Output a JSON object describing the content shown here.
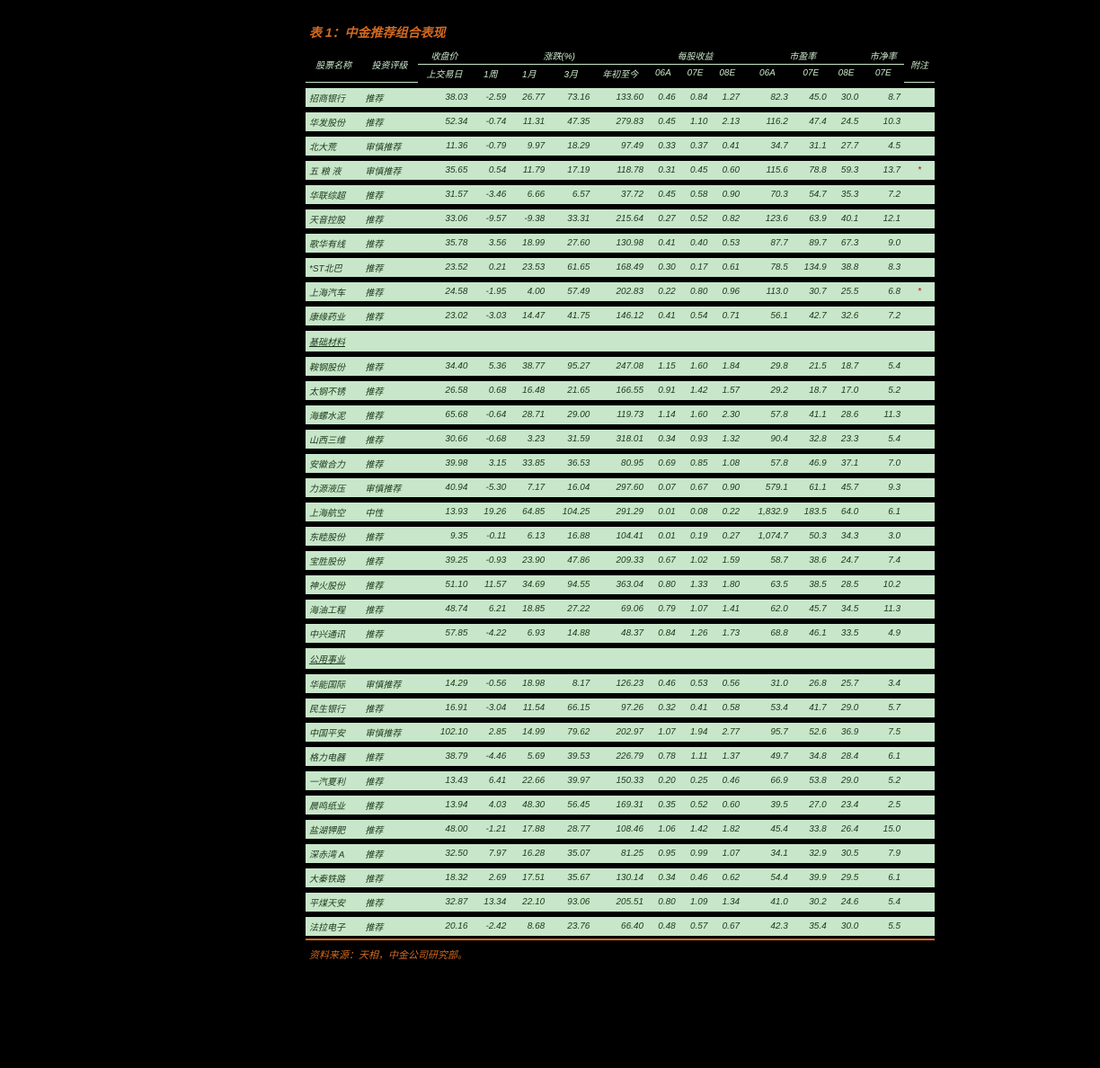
{
  "title": "表 1：中金推荐组合表现",
  "footer": "资料来源：天相，中金公司研究部。",
  "colors": {
    "background_page": "#000000",
    "row_bg": "#c8e6c9",
    "header_text": "#c8e6c9",
    "title_color": "#d4691e",
    "cell_text": "#1a3a1a",
    "note_color": "#c00"
  },
  "header_groups": {
    "name": "股票名称",
    "rating": "投资评级",
    "price_group": "收盘价",
    "price_sub": "上交易日",
    "chg_group": "涨跌(%)",
    "chg_1w": "1周",
    "chg_1m": "1月",
    "chg_3m": "3月",
    "chg_ytd": "年初至今",
    "eps_group": "每股收益",
    "eps_06a": "06A",
    "eps_07e": "07E",
    "eps_08e": "08E",
    "pe_group": "市盈率",
    "pe_06a": "06A",
    "pe_07e": "07E",
    "pe_08e": "08E",
    "pb_group": "市净率",
    "pb_07e": "07E",
    "note": "附注"
  },
  "sections": [
    {
      "rows": [
        {
          "name": "招商银行",
          "rating": "推荐",
          "price": "38.03",
          "w1": "-2.59",
          "m1": "26.77",
          "m3": "73.16",
          "ytd": "133.60",
          "e06": "0.46",
          "e07": "0.84",
          "e08": "1.27",
          "p06": "82.3",
          "p07": "45.0",
          "p08": "30.0",
          "pb": "8.7",
          "note": ""
        },
        {
          "name": "华发股份",
          "rating": "推荐",
          "price": "52.34",
          "w1": "-0.74",
          "m1": "11.31",
          "m3": "47.35",
          "ytd": "279.83",
          "e06": "0.45",
          "e07": "1.10",
          "e08": "2.13",
          "p06": "116.2",
          "p07": "47.4",
          "p08": "24.5",
          "pb": "10.3",
          "note": ""
        },
        {
          "name": "北大荒",
          "rating": "审慎推荐",
          "price": "11.36",
          "w1": "-0.79",
          "m1": "9.97",
          "m3": "18.29",
          "ytd": "97.49",
          "e06": "0.33",
          "e07": "0.37",
          "e08": "0.41",
          "p06": "34.7",
          "p07": "31.1",
          "p08": "27.7",
          "pb": "4.5",
          "note": ""
        },
        {
          "name": "五 粮 液",
          "rating": "审慎推荐",
          "price": "35.65",
          "w1": "0.54",
          "m1": "11.79",
          "m3": "17.19",
          "ytd": "118.78",
          "e06": "0.31",
          "e07": "0.45",
          "e08": "0.60",
          "p06": "115.6",
          "p07": "78.8",
          "p08": "59.3",
          "pb": "13.7",
          "note": "*"
        },
        {
          "name": "华联综超",
          "rating": "推荐",
          "price": "31.57",
          "w1": "-3.46",
          "m1": "6.66",
          "m3": "6.57",
          "ytd": "37.72",
          "e06": "0.45",
          "e07": "0.58",
          "e08": "0.90",
          "p06": "70.3",
          "p07": "54.7",
          "p08": "35.3",
          "pb": "7.2",
          "note": ""
        },
        {
          "name": "天音控股",
          "rating": "推荐",
          "price": "33.06",
          "w1": "-9.57",
          "m1": "-9.38",
          "m3": "33.31",
          "ytd": "215.64",
          "e06": "0.27",
          "e07": "0.52",
          "e08": "0.82",
          "p06": "123.6",
          "p07": "63.9",
          "p08": "40.1",
          "pb": "12.1",
          "note": ""
        },
        {
          "name": "歌华有线",
          "rating": "推荐",
          "price": "35.78",
          "w1": "3.56",
          "m1": "18.99",
          "m3": "27.60",
          "ytd": "130.98",
          "e06": "0.41",
          "e07": "0.40",
          "e08": "0.53",
          "p06": "87.7",
          "p07": "89.7",
          "p08": "67.3",
          "pb": "9.0",
          "note": ""
        },
        {
          "name": "*ST北巴",
          "rating": "推荐",
          "price": "23.52",
          "w1": "0.21",
          "m1": "23.53",
          "m3": "61.65",
          "ytd": "168.49",
          "e06": "0.30",
          "e07": "0.17",
          "e08": "0.61",
          "p06": "78.5",
          "p07": "134.9",
          "p08": "38.8",
          "pb": "8.3",
          "note": ""
        },
        {
          "name": "上海汽车",
          "rating": "推荐",
          "price": "24.58",
          "w1": "-1.95",
          "m1": "4.00",
          "m3": "57.49",
          "ytd": "202.83",
          "e06": "0.22",
          "e07": "0.80",
          "e08": "0.96",
          "p06": "113.0",
          "p07": "30.7",
          "p08": "25.5",
          "pb": "6.8",
          "note": "*"
        },
        {
          "name": "康缘药业",
          "rating": "推荐",
          "price": "23.02",
          "w1": "-3.03",
          "m1": "14.47",
          "m3": "41.75",
          "ytd": "146.12",
          "e06": "0.41",
          "e07": "0.54",
          "e08": "0.71",
          "p06": "56.1",
          "p07": "42.7",
          "p08": "32.6",
          "pb": "7.2",
          "note": ""
        }
      ]
    },
    {
      "label": "基础材料",
      "rows": [
        {
          "name": "鞍钢股份",
          "rating": "推荐",
          "price": "34.40",
          "w1": "5.36",
          "m1": "38.77",
          "m3": "95.27",
          "ytd": "247.08",
          "e06": "1.15",
          "e07": "1.60",
          "e08": "1.84",
          "p06": "29.8",
          "p07": "21.5",
          "p08": "18.7",
          "pb": "5.4",
          "note": ""
        },
        {
          "name": "太钢不锈",
          "rating": "推荐",
          "price": "26.58",
          "w1": "0.68",
          "m1": "16.48",
          "m3": "21.65",
          "ytd": "166.55",
          "e06": "0.91",
          "e07": "1.42",
          "e08": "1.57",
          "p06": "29.2",
          "p07": "18.7",
          "p08": "17.0",
          "pb": "5.2",
          "note": ""
        },
        {
          "name": "海螺水泥",
          "rating": "推荐",
          "price": "65.68",
          "w1": "-0.64",
          "m1": "28.71",
          "m3": "29.00",
          "ytd": "119.73",
          "e06": "1.14",
          "e07": "1.60",
          "e08": "2.30",
          "p06": "57.8",
          "p07": "41.1",
          "p08": "28.6",
          "pb": "11.3",
          "note": ""
        },
        {
          "name": "山西三维",
          "rating": "推荐",
          "price": "30.66",
          "w1": "-0.68",
          "m1": "3.23",
          "m3": "31.59",
          "ytd": "318.01",
          "e06": "0.34",
          "e07": "0.93",
          "e08": "1.32",
          "p06": "90.4",
          "p07": "32.8",
          "p08": "23.3",
          "pb": "5.4",
          "note": ""
        },
        {
          "name": "安徽合力",
          "rating": "推荐",
          "price": "39.98",
          "w1": "3.15",
          "m1": "33.85",
          "m3": "36.53",
          "ytd": "80.95",
          "e06": "0.69",
          "e07": "0.85",
          "e08": "1.08",
          "p06": "57.8",
          "p07": "46.9",
          "p08": "37.1",
          "pb": "7.0",
          "note": ""
        },
        {
          "name": "力源液压",
          "rating": "审慎推荐",
          "price": "40.94",
          "w1": "-5.30",
          "m1": "7.17",
          "m3": "16.04",
          "ytd": "297.60",
          "e06": "0.07",
          "e07": "0.67",
          "e08": "0.90",
          "p06": "579.1",
          "p07": "61.1",
          "p08": "45.7",
          "pb": "9.3",
          "note": ""
        },
        {
          "name": "上海航空",
          "rating": "中性",
          "price": "13.93",
          "w1": "19.26",
          "m1": "64.85",
          "m3": "104.25",
          "ytd": "291.29",
          "e06": "0.01",
          "e07": "0.08",
          "e08": "0.22",
          "p06": "1,832.9",
          "p07": "183.5",
          "p08": "64.0",
          "pb": "6.1",
          "note": ""
        },
        {
          "name": "东睦股份",
          "rating": "推荐",
          "price": "9.35",
          "w1": "-0.11",
          "m1": "6.13",
          "m3": "16.88",
          "ytd": "104.41",
          "e06": "0.01",
          "e07": "0.19",
          "e08": "0.27",
          "p06": "1,074.7",
          "p07": "50.3",
          "p08": "34.3",
          "pb": "3.0",
          "note": ""
        },
        {
          "name": "宝胜股份",
          "rating": "推荐",
          "price": "39.25",
          "w1": "-0.93",
          "m1": "23.90",
          "m3": "47.86",
          "ytd": "209.33",
          "e06": "0.67",
          "e07": "1.02",
          "e08": "1.59",
          "p06": "58.7",
          "p07": "38.6",
          "p08": "24.7",
          "pb": "7.4",
          "note": ""
        },
        {
          "name": "神火股份",
          "rating": "推荐",
          "price": "51.10",
          "w1": "11.57",
          "m1": "34.69",
          "m3": "94.55",
          "ytd": "363.04",
          "e06": "0.80",
          "e07": "1.33",
          "e08": "1.80",
          "p06": "63.5",
          "p07": "38.5",
          "p08": "28.5",
          "pb": "10.2",
          "note": ""
        },
        {
          "name": "海油工程",
          "rating": "推荐",
          "price": "48.74",
          "w1": "6.21",
          "m1": "18.85",
          "m3": "27.22",
          "ytd": "69.06",
          "e06": "0.79",
          "e07": "1.07",
          "e08": "1.41",
          "p06": "62.0",
          "p07": "45.7",
          "p08": "34.5",
          "pb": "11.3",
          "note": ""
        },
        {
          "name": "中兴通讯",
          "rating": "推荐",
          "price": "57.85",
          "w1": "-4.22",
          "m1": "6.93",
          "m3": "14.88",
          "ytd": "48.37",
          "e06": "0.84",
          "e07": "1.26",
          "e08": "1.73",
          "p06": "68.8",
          "p07": "46.1",
          "p08": "33.5",
          "pb": "4.9",
          "note": ""
        }
      ]
    },
    {
      "label": "公用事业",
      "rows": [
        {
          "name": "华能国际",
          "rating": "审慎推荐",
          "price": "14.29",
          "w1": "-0.56",
          "m1": "18.98",
          "m3": "8.17",
          "ytd": "126.23",
          "e06": "0.46",
          "e07": "0.53",
          "e08": "0.56",
          "p06": "31.0",
          "p07": "26.8",
          "p08": "25.7",
          "pb": "3.4",
          "note": ""
        },
        {
          "name": "民生银行",
          "rating": "推荐",
          "price": "16.91",
          "w1": "-3.04",
          "m1": "11.54",
          "m3": "66.15",
          "ytd": "97.26",
          "e06": "0.32",
          "e07": "0.41",
          "e08": "0.58",
          "p06": "53.4",
          "p07": "41.7",
          "p08": "29.0",
          "pb": "5.7",
          "note": ""
        },
        {
          "name": "中国平安",
          "rating": "审慎推荐",
          "price": "102.10",
          "w1": "2.85",
          "m1": "14.99",
          "m3": "79.62",
          "ytd": "202.97",
          "e06": "1.07",
          "e07": "1.94",
          "e08": "2.77",
          "p06": "95.7",
          "p07": "52.6",
          "p08": "36.9",
          "pb": "7.5",
          "note": ""
        },
        {
          "name": "格力电器",
          "rating": "推荐",
          "price": "38.79",
          "w1": "-4.46",
          "m1": "5.69",
          "m3": "39.53",
          "ytd": "226.79",
          "e06": "0.78",
          "e07": "1.11",
          "e08": "1.37",
          "p06": "49.7",
          "p07": "34.8",
          "p08": "28.4",
          "pb": "6.1",
          "note": ""
        },
        {
          "name": "一汽夏利",
          "rating": "推荐",
          "price": "13.43",
          "w1": "6.41",
          "m1": "22.66",
          "m3": "39.97",
          "ytd": "150.33",
          "e06": "0.20",
          "e07": "0.25",
          "e08": "0.46",
          "p06": "66.9",
          "p07": "53.8",
          "p08": "29.0",
          "pb": "5.2",
          "note": ""
        },
        {
          "name": "晨鸣纸业",
          "rating": "推荐",
          "price": "13.94",
          "w1": "4.03",
          "m1": "48.30",
          "m3": "56.45",
          "ytd": "169.31",
          "e06": "0.35",
          "e07": "0.52",
          "e08": "0.60",
          "p06": "39.5",
          "p07": "27.0",
          "p08": "23.4",
          "pb": "2.5",
          "note": ""
        },
        {
          "name": "盐湖钾肥",
          "rating": "推荐",
          "price": "48.00",
          "w1": "-1.21",
          "m1": "17.88",
          "m3": "28.77",
          "ytd": "108.46",
          "e06": "1.06",
          "e07": "1.42",
          "e08": "1.82",
          "p06": "45.4",
          "p07": "33.8",
          "p08": "26.4",
          "pb": "15.0",
          "note": ""
        },
        {
          "name": "深赤湾 A",
          "rating": "推荐",
          "price": "32.50",
          "w1": "7.97",
          "m1": "16.28",
          "m3": "35.07",
          "ytd": "81.25",
          "e06": "0.95",
          "e07": "0.99",
          "e08": "1.07",
          "p06": "34.1",
          "p07": "32.9",
          "p08": "30.5",
          "pb": "7.9",
          "note": ""
        },
        {
          "name": "大秦铁路",
          "rating": "推荐",
          "price": "18.32",
          "w1": "2.69",
          "m1": "17.51",
          "m3": "35.67",
          "ytd": "130.14",
          "e06": "0.34",
          "e07": "0.46",
          "e08": "0.62",
          "p06": "54.4",
          "p07": "39.9",
          "p08": "29.5",
          "pb": "6.1",
          "note": ""
        },
        {
          "name": "平煤天安",
          "rating": "推荐",
          "price": "32.87",
          "w1": "13.34",
          "m1": "22.10",
          "m3": "93.06",
          "ytd": "205.51",
          "e06": "0.80",
          "e07": "1.09",
          "e08": "1.34",
          "p06": "41.0",
          "p07": "30.2",
          "p08": "24.6",
          "pb": "5.4",
          "note": ""
        },
        {
          "name": "法拉电子",
          "rating": "推荐",
          "price": "20.16",
          "w1": "-2.42",
          "m1": "8.68",
          "m3": "23.76",
          "ytd": "66.40",
          "e06": "0.48",
          "e07": "0.57",
          "e08": "0.67",
          "p06": "42.3",
          "p07": "35.4",
          "p08": "30.0",
          "pb": "5.5",
          "note": ""
        }
      ]
    }
  ]
}
